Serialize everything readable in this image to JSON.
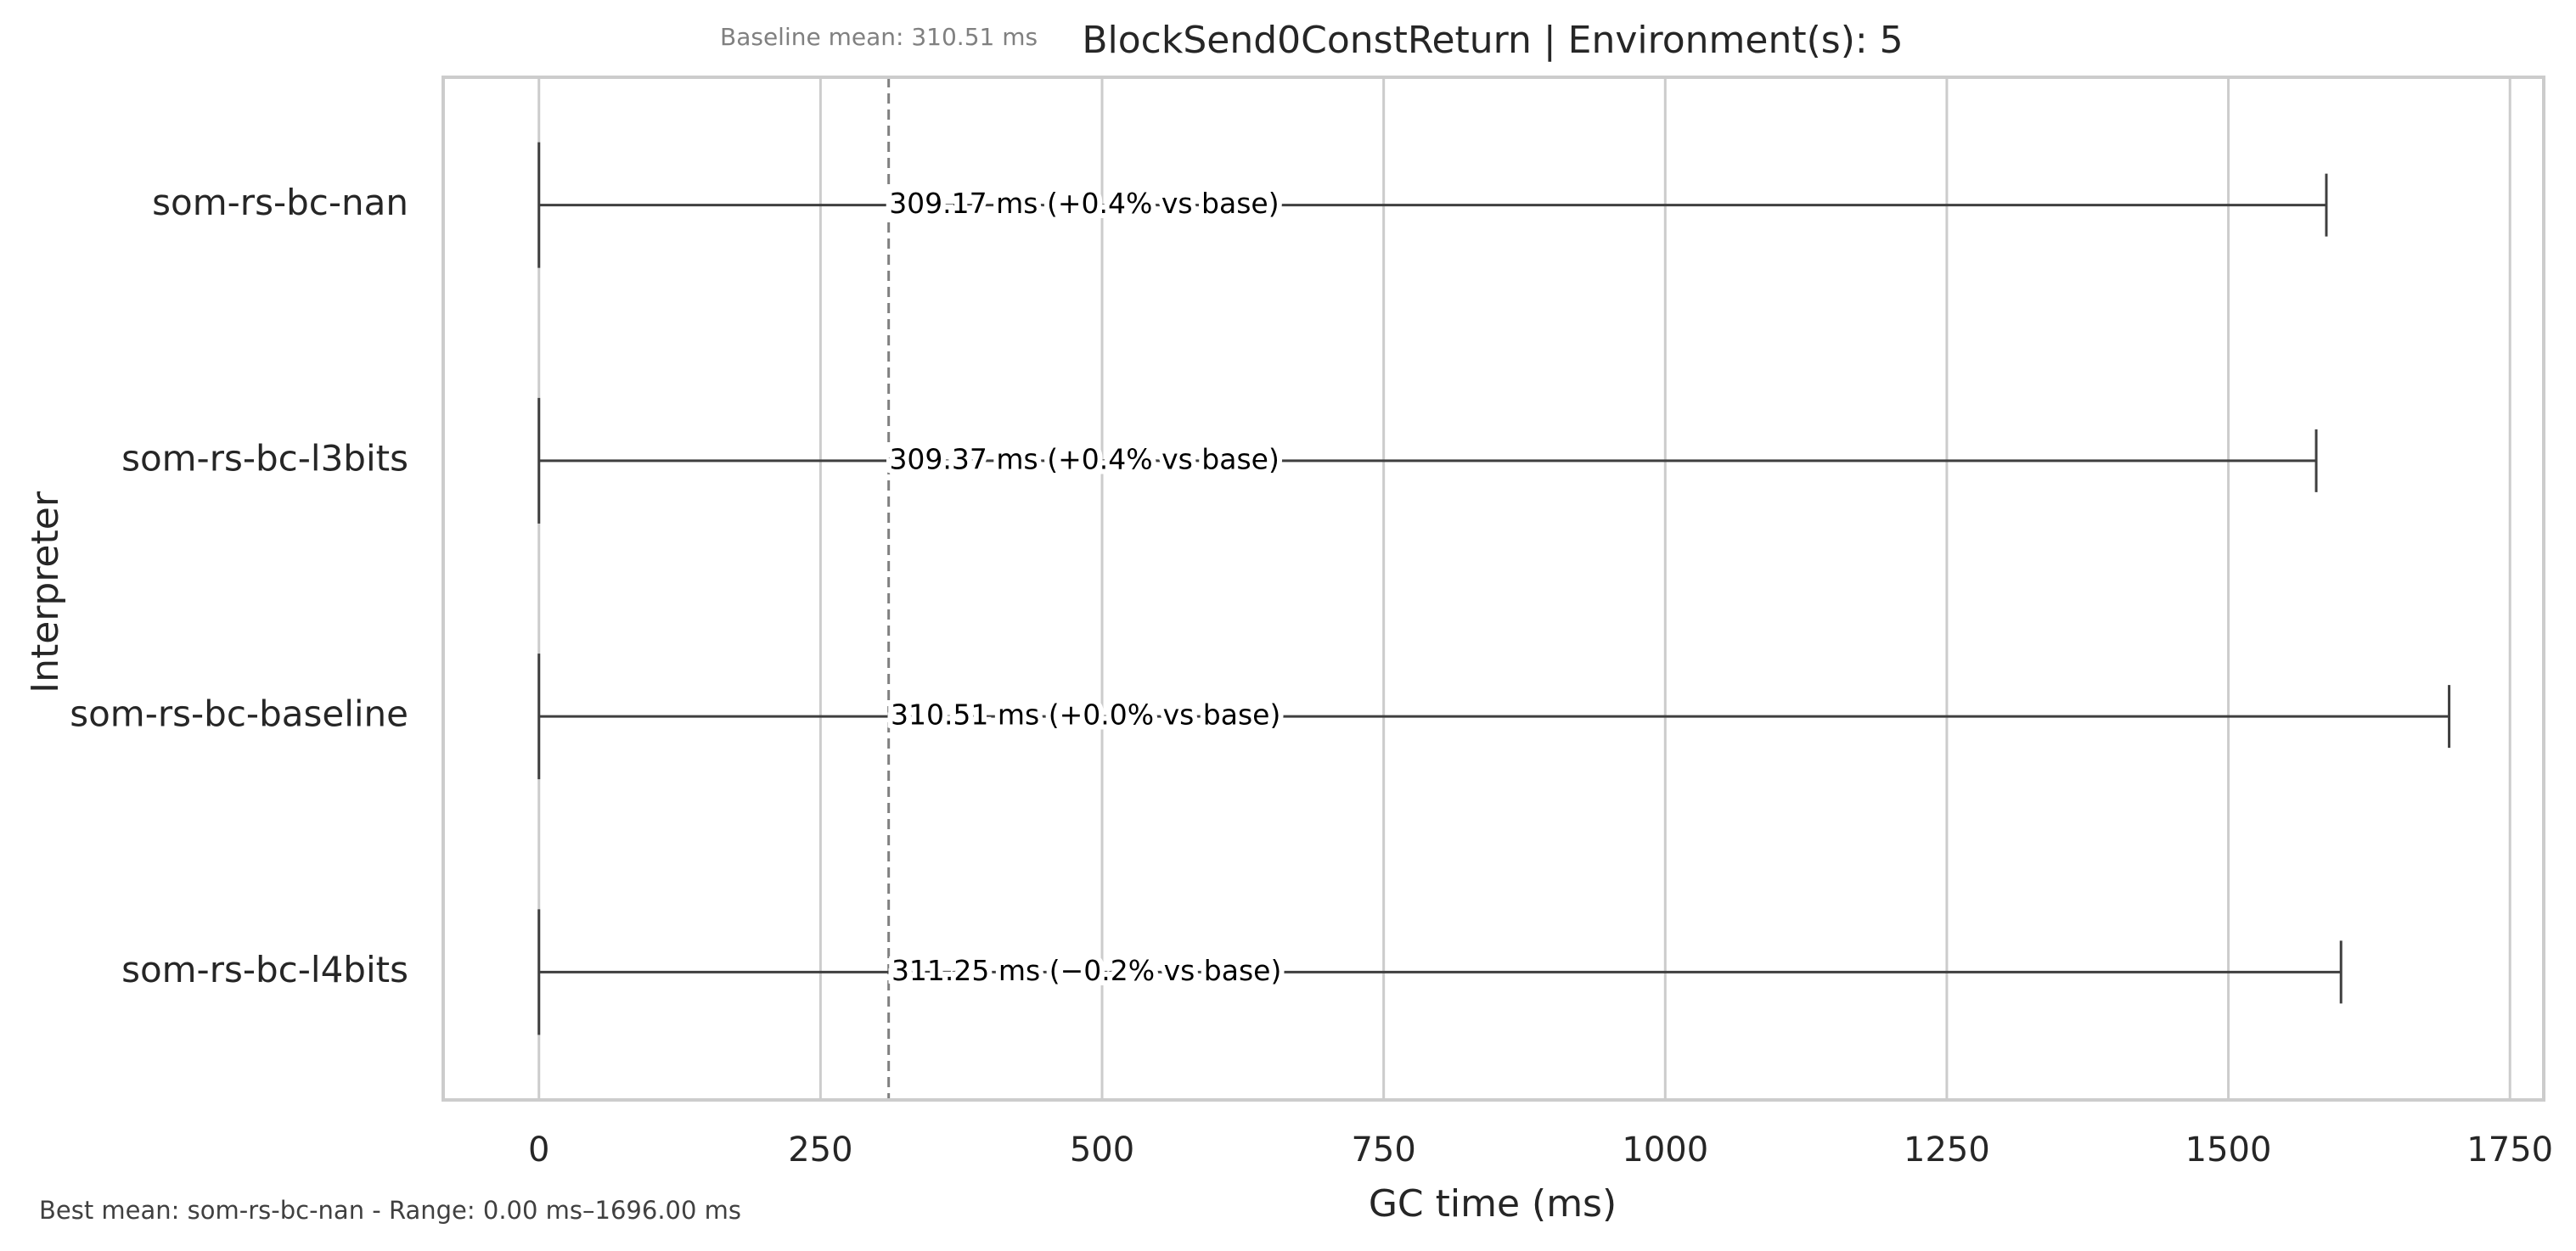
{
  "chart_data": {
    "type": "boxplot",
    "title": "BlockSend0ConstReturn | Environment(s): 5",
    "baseline_note": "Baseline mean: 310.51 ms",
    "footer_note": "Best mean: som-rs-bc-nan - Range: 0.00 ms–1696.00 ms",
    "xlabel": "GC time (ms)",
    "ylabel": "Interpreter",
    "xlim": [
      -85,
      1780
    ],
    "xticks": [
      0,
      250,
      500,
      750,
      1000,
      1250,
      1500,
      1750
    ],
    "grid": true,
    "baseline_mean": 310.51,
    "categories": [
      "som-rs-bc-nan",
      "som-rs-bc-l3bits",
      "som-rs-bc-baseline",
      "som-rs-bc-l4bits"
    ],
    "series": [
      {
        "min": 0,
        "max": 1587,
        "mean": 309.17,
        "label": "309.17 ms  (+0.4% vs base)"
      },
      {
        "min": 0,
        "max": 1578,
        "mean": 309.37,
        "label": "309.37 ms  (+0.4% vs base)"
      },
      {
        "min": 0,
        "max": 1696,
        "mean": 310.51,
        "label": "310.51 ms  (+0.0% vs base)"
      },
      {
        "min": 0,
        "max": 1600,
        "mean": 311.25,
        "label": "311.25 ms  (−0.2% vs base)"
      }
    ],
    "colors": {
      "frame": "#cccccc",
      "grid": "#cccccc",
      "whisker": "#3f3f3f",
      "baseline_line": "#808080",
      "text": "#262626",
      "muted": "#808080",
      "footer": "#404040"
    }
  }
}
